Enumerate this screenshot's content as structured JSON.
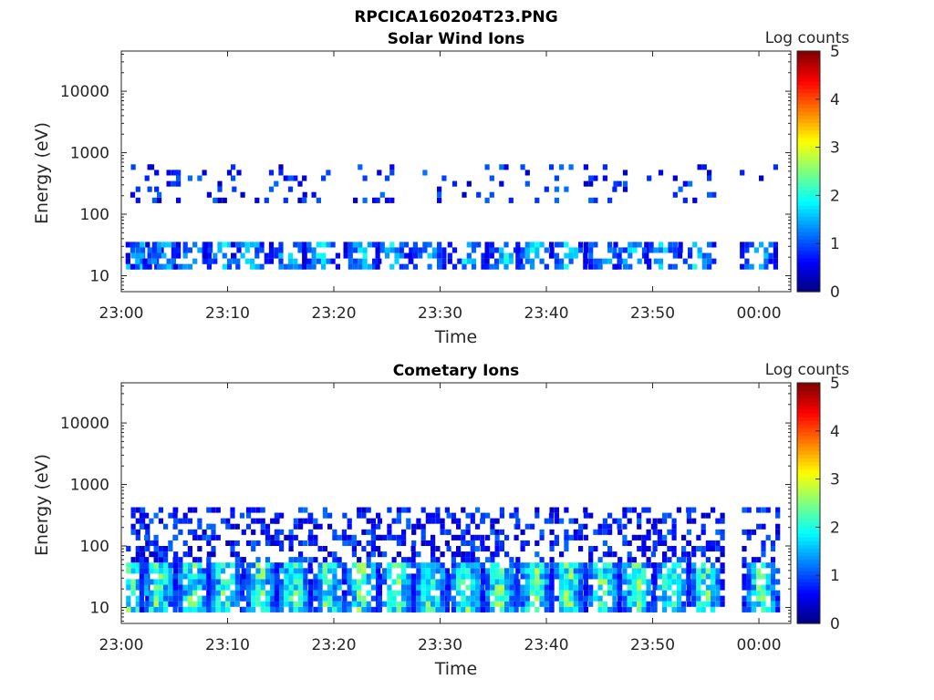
{
  "figure": {
    "title": "RPCICA160204T23.PNG"
  },
  "colormap": [
    "#00007f",
    "#0000ff",
    "#007fff",
    "#00ffff",
    "#7fff7f",
    "#ffff00",
    "#ff7f00",
    "#ff0000",
    "#7f0000"
  ],
  "chart_data": [
    {
      "type": "heatmap",
      "title": "Solar Wind Ions",
      "xlabel": "Time",
      "ylabel": "Energy (eV)",
      "colorbar_label": "Log counts",
      "x_ticks": [
        "23:00",
        "23:10",
        "23:20",
        "23:30",
        "23:40",
        "23:50",
        "00:00"
      ],
      "y_ticks": [
        "10",
        "100",
        "1000",
        "10000"
      ],
      "y_scale": "log",
      "ylim": [
        5.5,
        45000
      ],
      "xlim_minutes": [
        0,
        63
      ],
      "clim": [
        0,
        5
      ],
      "colorbar_ticks": [
        "0",
        "1",
        "2",
        "3",
        "4",
        "5"
      ],
      "band_centers_minutes": [
        0.7,
        2.0,
        3.6,
        6.5,
        9.3,
        11.9,
        15.5,
        18.6,
        22.5,
        25.5,
        28.6,
        32.3,
        35.8,
        38.7,
        41.9,
        45.1,
        47.9,
        50.8,
        54.0,
        59.8
      ],
      "approx_peak_log_counts": 2.0,
      "dominant_energy_range_eV": [
        12,
        35
      ],
      "secondary_energy_range_eV": [
        150,
        600
      ]
    },
    {
      "type": "heatmap",
      "title": "Cometary Ions",
      "xlabel": "Time",
      "ylabel": "Energy (eV)",
      "colorbar_label": "Log counts",
      "x_ticks": [
        "23:00",
        "23:10",
        "23:20",
        "23:30",
        "23:40",
        "23:50",
        "00:00"
      ],
      "y_ticks": [
        "10",
        "100",
        "1000",
        "10000"
      ],
      "y_scale": "log",
      "ylim": [
        5.5,
        45000
      ],
      "xlim_minutes": [
        0,
        63
      ],
      "clim": [
        0,
        5
      ],
      "colorbar_ticks": [
        "0",
        "1",
        "2",
        "3",
        "4",
        "5"
      ],
      "band_centers_minutes": [
        0.7,
        3.3,
        6.5,
        9.6,
        12.9,
        16.0,
        19.2,
        22.4,
        25.7,
        28.9,
        32.2,
        35.4,
        38.7,
        41.9,
        45.1,
        48.3,
        51.6,
        54.8,
        60.0
      ],
      "approx_peak_log_counts": 2.7,
      "dominant_energy_range_eV": [
        8,
        45
      ],
      "secondary_energy_range_eV": [
        50,
        400
      ]
    }
  ]
}
